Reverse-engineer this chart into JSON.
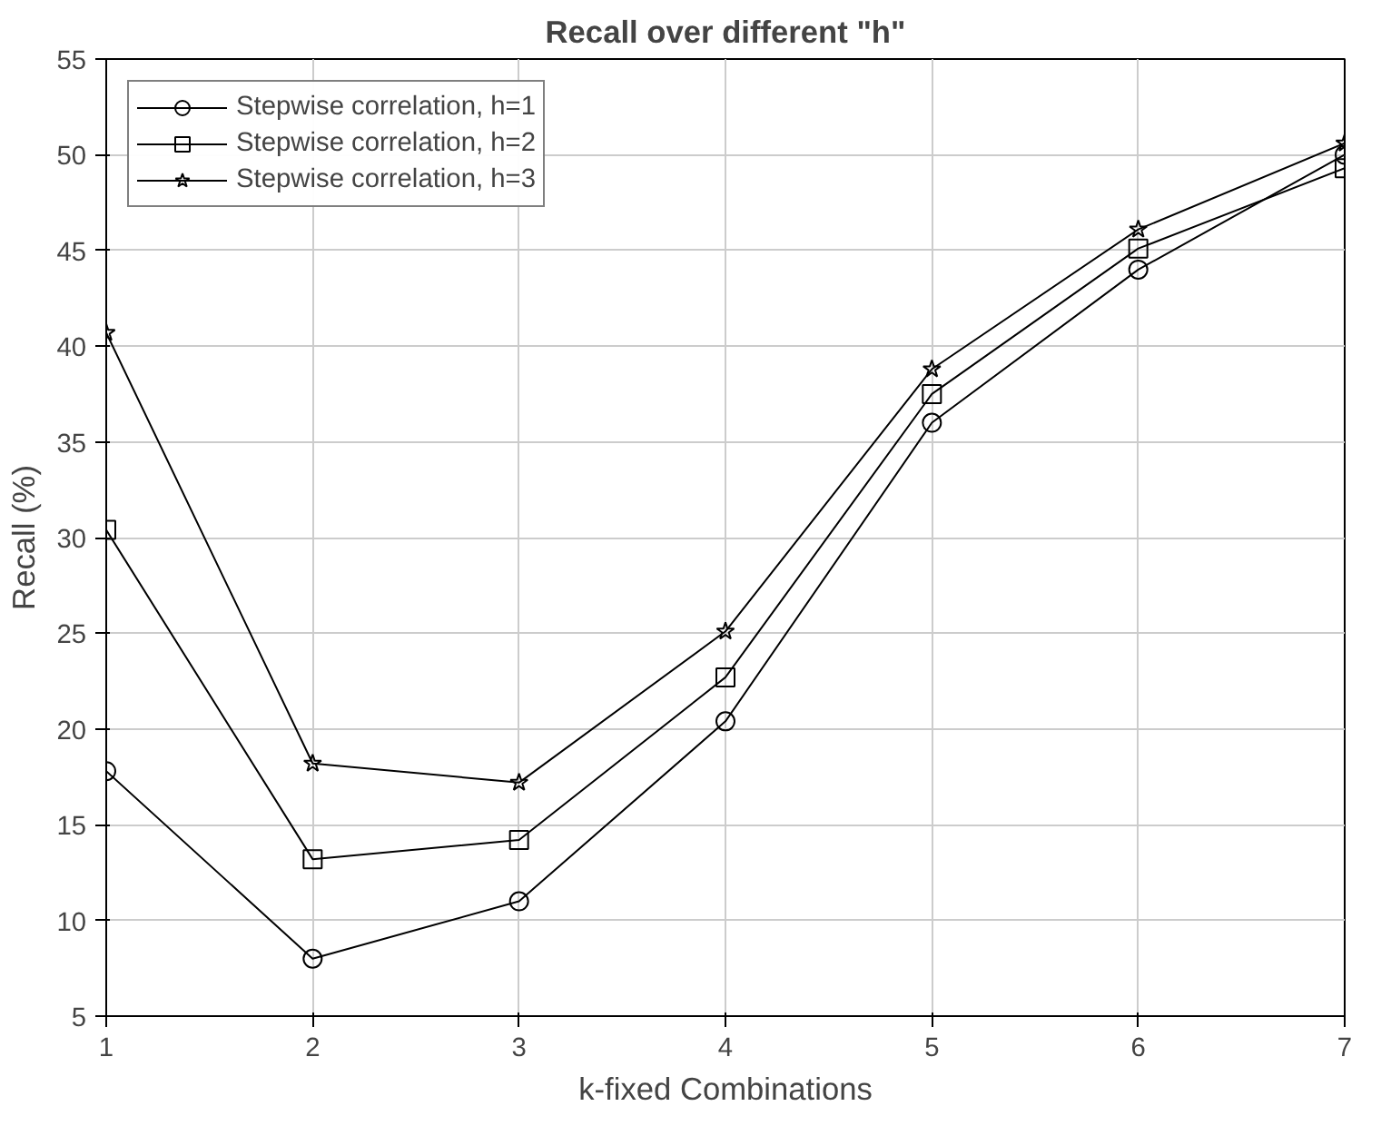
{
  "chart_data": {
    "type": "line",
    "title": "Recall over different \"h\"",
    "xlabel": "k-fixed Combinations",
    "ylabel": "Recall (%)",
    "x": [
      1,
      2,
      3,
      4,
      5,
      6,
      7
    ],
    "series": [
      {
        "name": "Stepwise correlation, h=1",
        "color": "#000000",
        "marker": "circle",
        "values": [
          17.8,
          8.0,
          11.0,
          20.4,
          36.0,
          44.0,
          50.0
        ]
      },
      {
        "name": "Stepwise correlation, h=2",
        "color": "#000000",
        "marker": "square",
        "values": [
          30.4,
          13.2,
          14.2,
          22.7,
          37.5,
          45.1,
          49.3
        ]
      },
      {
        "name": "Stepwise correlation, h=3",
        "color": "#000000",
        "marker": "star",
        "values": [
          40.7,
          18.2,
          17.2,
          25.1,
          38.8,
          46.1,
          50.6
        ]
      }
    ],
    "xlim": [
      1,
      7
    ],
    "ylim": [
      5,
      55
    ],
    "xticks": [
      1,
      2,
      3,
      4,
      5,
      6,
      7
    ],
    "yticks": [
      5,
      10,
      15,
      20,
      25,
      30,
      35,
      40,
      45,
      50,
      55
    ],
    "grid": true,
    "legend": "top left",
    "line_style": "solid"
  }
}
